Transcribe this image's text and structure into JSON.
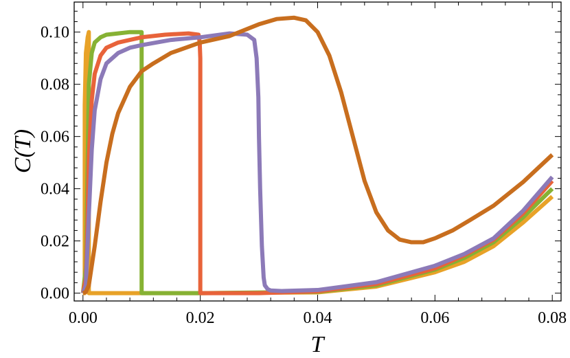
{
  "chart_data": {
    "type": "line",
    "title": "",
    "xlabel": "T",
    "ylabel": "C(T)",
    "xlim": [
      -0.0015,
      0.0815
    ],
    "ylim": [
      -0.003,
      0.1115
    ],
    "x_ticks": [
      "0.00",
      "0.02",
      "0.04",
      "0.06",
      "0.08"
    ],
    "y_ticks": [
      "0.00",
      "0.02",
      "0.04",
      "0.06",
      "0.08",
      "0.10"
    ],
    "x_tick_values": [
      0,
      0.02,
      0.04,
      0.06,
      0.08
    ],
    "y_tick_values": [
      0,
      0.02,
      0.04,
      0.06,
      0.08,
      0.1
    ],
    "grid": false,
    "legend": "none",
    "series": [
      {
        "color": "#e8a228",
        "x": [
          0,
          0.0003,
          0.0003,
          0.0005,
          0.0008,
          0.001,
          0.001,
          0.02,
          0.04,
          0.05,
          0.06,
          0.065,
          0.07,
          0.075,
          0.08
        ],
        "y": [
          0,
          0,
          0.072,
          0.092,
          0.098,
          0.1,
          0,
          0,
          0.0003,
          0.0025,
          0.008,
          0.012,
          0.018,
          0.027,
          0.037
        ]
      },
      {
        "color": "#86b234",
        "x": [
          0,
          0.0005,
          0.0008,
          0.001,
          0.0015,
          0.002,
          0.003,
          0.004,
          0.006,
          0.008,
          0.01,
          0.01,
          0.02,
          0.04,
          0.05,
          0.06,
          0.065,
          0.07,
          0.075,
          0.08
        ],
        "y": [
          0,
          0.01,
          0.05,
          0.08,
          0.092,
          0.096,
          0.098,
          0.099,
          0.0995,
          0.1,
          0.1,
          0,
          0,
          0.0005,
          0.003,
          0.009,
          0.0135,
          0.0195,
          0.029,
          0.04
        ]
      },
      {
        "color": "#e8633a",
        "x": [
          0,
          0.0005,
          0.0008,
          0.001,
          0.0015,
          0.002,
          0.003,
          0.004,
          0.006,
          0.008,
          0.01,
          0.014,
          0.018,
          0.0197,
          0.0199,
          0.02,
          0.02,
          0.03,
          0.04,
          0.05,
          0.06,
          0.065,
          0.07,
          0.075,
          0.08
        ],
        "y": [
          0,
          0.006,
          0.03,
          0.052,
          0.074,
          0.084,
          0.091,
          0.094,
          0.096,
          0.097,
          0.098,
          0.099,
          0.0995,
          0.099,
          0.096,
          0.09,
          0,
          0,
          0.0007,
          0.0035,
          0.0095,
          0.0145,
          0.0205,
          0.0305,
          0.043
        ]
      },
      {
        "color": "#8c7ab8",
        "x": [
          0,
          0.0005,
          0.001,
          0.0015,
          0.002,
          0.003,
          0.004,
          0.006,
          0.008,
          0.01,
          0.015,
          0.02,
          0.025,
          0.028,
          0.0292,
          0.0296,
          0.0299,
          0.03,
          0.0302,
          0.0305,
          0.0308,
          0.031,
          0.0315,
          0.032,
          0.034,
          0.04,
          0.05,
          0.06,
          0.065,
          0.07,
          0.075,
          0.08
        ],
        "y": [
          0,
          0.003,
          0.03,
          0.055,
          0.07,
          0.082,
          0.088,
          0.092,
          0.094,
          0.095,
          0.097,
          0.098,
          0.0995,
          0.099,
          0.097,
          0.09,
          0.075,
          0.06,
          0.04,
          0.018,
          0.006,
          0.003,
          0.0015,
          0.001,
          0.0008,
          0.0012,
          0.0042,
          0.0105,
          0.015,
          0.021,
          0.0315,
          0.0445
        ]
      },
      {
        "color": "#c86e1e",
        "x": [
          0,
          0.0005,
          0.001,
          0.002,
          0.003,
          0.004,
          0.005,
          0.006,
          0.008,
          0.01,
          0.012,
          0.015,
          0.02,
          0.025,
          0.03,
          0.033,
          0.036,
          0.038,
          0.04,
          0.042,
          0.044,
          0.046,
          0.048,
          0.05,
          0.052,
          0.054,
          0.056,
          0.058,
          0.06,
          0.063,
          0.066,
          0.07,
          0.075,
          0.08
        ],
        "y": [
          0,
          0.0005,
          0.003,
          0.018,
          0.035,
          0.05,
          0.061,
          0.069,
          0.079,
          0.085,
          0.088,
          0.092,
          0.096,
          0.0985,
          0.103,
          0.105,
          0.1055,
          0.1045,
          0.1,
          0.091,
          0.077,
          0.06,
          0.043,
          0.031,
          0.024,
          0.0205,
          0.0195,
          0.0195,
          0.021,
          0.024,
          0.028,
          0.0335,
          0.0425,
          0.053
        ]
      }
    ]
  }
}
